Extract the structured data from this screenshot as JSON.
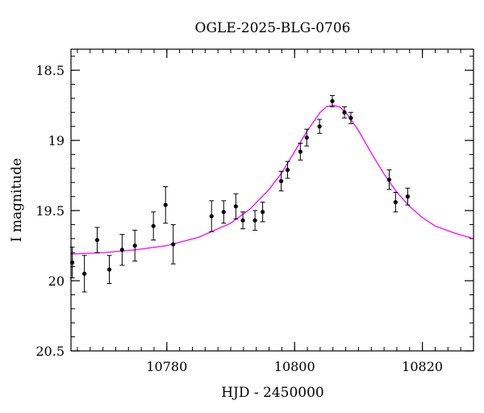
{
  "chart_data": {
    "type": "scatter",
    "title": "OGLE-2025-BLG-0706",
    "xlabel": "HJD - 2450000",
    "ylabel": "I magnitude",
    "xlim": [
      10765,
      10828
    ],
    "ylim": [
      20.5,
      18.35
    ],
    "y_inverted": true,
    "x_ticks": [
      {
        "value": 10780,
        "label": "10780"
      },
      {
        "value": 10800,
        "label": "10800"
      },
      {
        "value": 10820,
        "label": "10820"
      }
    ],
    "y_ticks": [
      {
        "value": 18.5,
        "label": "18.5"
      },
      {
        "value": 19.0,
        "label": "19"
      },
      {
        "value": 19.5,
        "label": "19.5"
      },
      {
        "value": 20.0,
        "label": "20"
      },
      {
        "value": 20.5,
        "label": "20.5"
      }
    ],
    "x_minor_step": 2,
    "y_minor_step": 0.1,
    "points_color": "#000000",
    "model_color": "#ff00ff",
    "points": [
      {
        "x": 10765.2,
        "y": 19.87,
        "err": 0.11
      },
      {
        "x": 10767.1,
        "y": 19.95,
        "err": 0.13
      },
      {
        "x": 10769.1,
        "y": 19.71,
        "err": 0.09
      },
      {
        "x": 10771.0,
        "y": 19.92,
        "err": 0.1
      },
      {
        "x": 10773.0,
        "y": 19.78,
        "err": 0.11
      },
      {
        "x": 10775.0,
        "y": 19.75,
        "err": 0.11
      },
      {
        "x": 10777.9,
        "y": 19.61,
        "err": 0.1
      },
      {
        "x": 10779.8,
        "y": 19.46,
        "err": 0.13
      },
      {
        "x": 10781.0,
        "y": 19.74,
        "err": 0.14
      },
      {
        "x": 10787.0,
        "y": 19.54,
        "err": 0.11
      },
      {
        "x": 10788.9,
        "y": 19.51,
        "err": 0.08
      },
      {
        "x": 10790.8,
        "y": 19.47,
        "err": 0.09
      },
      {
        "x": 10791.9,
        "y": 19.57,
        "err": 0.06
      },
      {
        "x": 10793.8,
        "y": 19.57,
        "err": 0.07
      },
      {
        "x": 10795.0,
        "y": 19.51,
        "err": 0.07
      },
      {
        "x": 10797.9,
        "y": 19.29,
        "err": 0.07
      },
      {
        "x": 10798.9,
        "y": 19.21,
        "err": 0.06
      },
      {
        "x": 10800.9,
        "y": 19.08,
        "err": 0.06
      },
      {
        "x": 10801.9,
        "y": 18.98,
        "err": 0.06
      },
      {
        "x": 10803.9,
        "y": 18.9,
        "err": 0.05
      },
      {
        "x": 10805.9,
        "y": 18.72,
        "err": 0.04
      },
      {
        "x": 10807.8,
        "y": 18.8,
        "err": 0.04
      },
      {
        "x": 10808.8,
        "y": 18.84,
        "err": 0.04
      },
      {
        "x": 10814.8,
        "y": 19.28,
        "err": 0.07
      },
      {
        "x": 10815.8,
        "y": 19.44,
        "err": 0.07
      },
      {
        "x": 10817.7,
        "y": 19.4,
        "err": 0.06
      }
    ],
    "model": {
      "x": [
        10765,
        10770,
        10775,
        10780,
        10785,
        10790,
        10793,
        10796,
        10798,
        10800,
        10802,
        10804,
        10805,
        10806,
        10807,
        10808,
        10810,
        10812,
        10814,
        10816,
        10818,
        10820,
        10822,
        10825,
        10828
      ],
      "y": [
        19.81,
        19.8,
        19.78,
        19.75,
        19.69,
        19.59,
        19.49,
        19.35,
        19.23,
        19.08,
        18.93,
        18.8,
        18.76,
        18.75,
        18.76,
        18.8,
        18.93,
        19.09,
        19.24,
        19.37,
        19.47,
        19.55,
        19.61,
        19.66,
        19.7
      ]
    }
  }
}
